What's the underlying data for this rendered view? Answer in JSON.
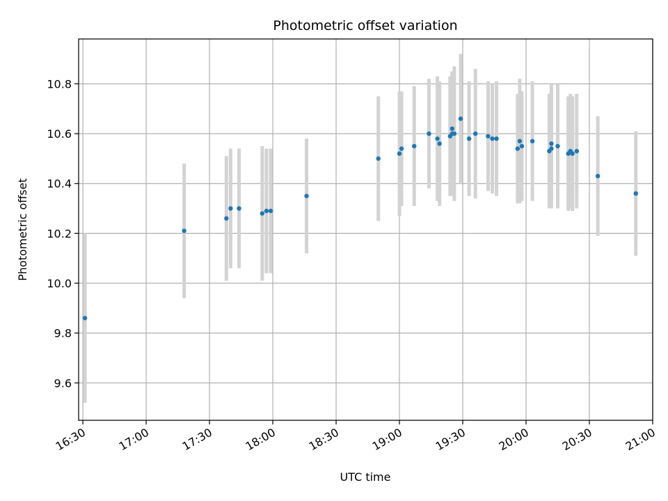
{
  "chart_data": {
    "type": "scatter",
    "title": "Photometric offset variation",
    "xlabel": "UTC time",
    "ylabel": "Photometric offset",
    "x_tick_labels": [
      "16:30",
      "17:00",
      "17:30",
      "18:00",
      "18:30",
      "19:00",
      "19:30",
      "20:00",
      "20:30",
      "21:00"
    ],
    "y_tick_labels": [
      "9.6",
      "9.8",
      "10.0",
      "10.2",
      "10.4",
      "10.6",
      "10.8"
    ],
    "xlim": [
      "16:28",
      "21:00"
    ],
    "ylim": [
      9.45,
      10.98
    ],
    "grid": true,
    "marker_color": "#1f77b4",
    "errorbar_color": "#d3d3d3",
    "series": [
      {
        "points": [
          {
            "x": "16:31",
            "y": 9.86,
            "yerr": 0.34
          },
          {
            "x": "17:18",
            "y": 10.21,
            "yerr": 0.27
          },
          {
            "x": "17:38",
            "y": 10.26,
            "yerr": 0.25
          },
          {
            "x": "17:40",
            "y": 10.3,
            "yerr": 0.24
          },
          {
            "x": "17:44",
            "y": 10.3,
            "yerr": 0.24
          },
          {
            "x": "17:55",
            "y": 10.28,
            "yerr": 0.27
          },
          {
            "x": "17:57",
            "y": 10.29,
            "yerr": 0.25
          },
          {
            "x": "17:59",
            "y": 10.29,
            "yerr": 0.25
          },
          {
            "x": "18:16",
            "y": 10.35,
            "yerr": 0.23
          },
          {
            "x": "18:50",
            "y": 10.5,
            "yerr": 0.25
          },
          {
            "x": "19:00",
            "y": 10.52,
            "yerr": 0.25
          },
          {
            "x": "19:01",
            "y": 10.54,
            "yerr": 0.23
          },
          {
            "x": "19:07",
            "y": 10.55,
            "yerr": 0.24
          },
          {
            "x": "19:14",
            "y": 10.6,
            "yerr": 0.22
          },
          {
            "x": "19:18",
            "y": 10.58,
            "yerr": 0.25
          },
          {
            "x": "19:19",
            "y": 10.56,
            "yerr": 0.25
          },
          {
            "x": "19:24",
            "y": 10.59,
            "yerr": 0.24
          },
          {
            "x": "19:25",
            "y": 10.62,
            "yerr": 0.22
          },
          {
            "x": "19:25",
            "y": 10.6,
            "yerr": 0.25
          },
          {
            "x": "19:26",
            "y": 10.6,
            "yerr": 0.27
          },
          {
            "x": "19:29",
            "y": 10.66,
            "yerr": 0.26
          },
          {
            "x": "19:33",
            "y": 10.58,
            "yerr": 0.23
          },
          {
            "x": "19:36",
            "y": 10.6,
            "yerr": 0.26
          },
          {
            "x": "19:42",
            "y": 10.59,
            "yerr": 0.22
          },
          {
            "x": "19:44",
            "y": 10.58,
            "yerr": 0.22
          },
          {
            "x": "19:46",
            "y": 10.58,
            "yerr": 0.23
          },
          {
            "x": "19:56",
            "y": 10.54,
            "yerr": 0.22
          },
          {
            "x": "19:57",
            "y": 10.57,
            "yerr": 0.25
          },
          {
            "x": "19:58",
            "y": 10.55,
            "yerr": 0.22
          },
          {
            "x": "20:03",
            "y": 10.57,
            "yerr": 0.24
          },
          {
            "x": "20:11",
            "y": 10.53,
            "yerr": 0.23
          },
          {
            "x": "20:12",
            "y": 10.54,
            "yerr": 0.24
          },
          {
            "x": "20:12",
            "y": 10.56,
            "yerr": 0.24
          },
          {
            "x": "20:15",
            "y": 10.55,
            "yerr": 0.25
          },
          {
            "x": "20:20",
            "y": 10.52,
            "yerr": 0.23
          },
          {
            "x": "20:21",
            "y": 10.53,
            "yerr": 0.23
          },
          {
            "x": "20:22",
            "y": 10.52,
            "yerr": 0.23
          },
          {
            "x": "20:24",
            "y": 10.53,
            "yerr": 0.23
          },
          {
            "x": "20:34",
            "y": 10.43,
            "yerr": 0.24
          },
          {
            "x": "20:52",
            "y": 10.36,
            "yerr": 0.25
          }
        ]
      }
    ]
  }
}
